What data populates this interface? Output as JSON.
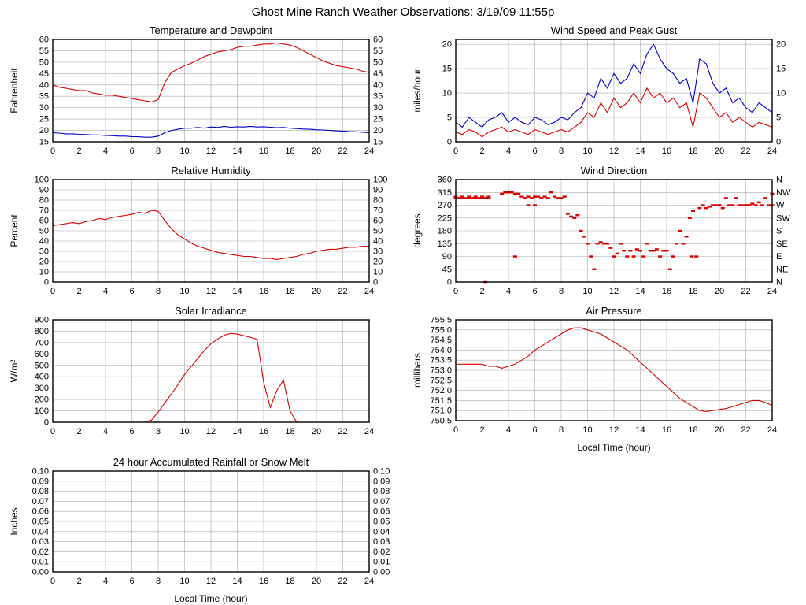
{
  "title": "Ghost Mine Ranch Weather Observations: 3/19/09 11:55p",
  "xlabel_shared": "Local Time (hour)",
  "colors": {
    "red": "#dd0000",
    "blue": "#0000cc",
    "grid": "#aaaaaa",
    "axis": "#000000"
  },
  "chart_data": [
    {
      "type": "line",
      "title": "Temperature and Dewpoint",
      "ylabel": "Fahrenheit",
      "xlabel": "",
      "ylim": [
        15,
        60
      ],
      "ytick_step": 5,
      "ytick_decimals": 0,
      "right_axis": "same",
      "xlim": [
        0,
        24
      ],
      "xtick_step": 2,
      "x_start": 0,
      "x_step": 0.5,
      "series": [
        {
          "name": "Temperature",
          "color": "#dd0000",
          "y": [
            40,
            39,
            38.5,
            38,
            37.5,
            37.5,
            36.5,
            36,
            35.5,
            35.5,
            35,
            34.5,
            34,
            33.5,
            33,
            32.5,
            33.5,
            41,
            45.5,
            47,
            48.5,
            49.5,
            51,
            52.5,
            53.5,
            54.5,
            55,
            55.5,
            56.5,
            57,
            57,
            57.5,
            58,
            58,
            58.5,
            58,
            57.5,
            56.5,
            55,
            53.5,
            52,
            50.5,
            49.5,
            48.5,
            48,
            47.5,
            47,
            46,
            45.5
          ]
        },
        {
          "name": "Dewpoint",
          "color": "#0000cc",
          "y": [
            19,
            18.8,
            18.5,
            18.5,
            18.3,
            18.2,
            18,
            18,
            17.8,
            17.7,
            17.5,
            17.5,
            17.3,
            17.2,
            17,
            17,
            17.5,
            19,
            20,
            20.5,
            21,
            21,
            21.3,
            21,
            21.5,
            21.3,
            21.8,
            21.4,
            21.6,
            21.5,
            21.8,
            21.5,
            21.6,
            21.4,
            21.2,
            21.3,
            21,
            20.8,
            20.6,
            20.5,
            20.3,
            20.2,
            20,
            19.8,
            19.7,
            19.5,
            19.4,
            19.2,
            19
          ]
        }
      ]
    },
    {
      "type": "line",
      "title": "Wind Speed and Peak Gust",
      "ylabel": "miles/hour",
      "xlabel": "",
      "ylim": [
        0,
        21
      ],
      "ytick_step": 5,
      "ytick_decimals": 0,
      "right_axis": "same",
      "xlim": [
        0,
        24
      ],
      "xtick_step": 2,
      "x_start": 0,
      "x_step": 0.5,
      "series": [
        {
          "name": "Peak Gust",
          "color": "#0000cc",
          "y": [
            4,
            3,
            5,
            4,
            3,
            4.5,
            5,
            6,
            4,
            5,
            4,
            3.5,
            5,
            4.5,
            3.5,
            4,
            5,
            4.5,
            6,
            7,
            10,
            9,
            13,
            11,
            14,
            12,
            13,
            16,
            14,
            18,
            20,
            17,
            15,
            14,
            12,
            13,
            8,
            17,
            16,
            12,
            10,
            11,
            8,
            9,
            7,
            6,
            8,
            7,
            6
          ]
        },
        {
          "name": "Wind Speed",
          "color": "#dd0000",
          "y": [
            2,
            1.5,
            2.5,
            2,
            1,
            2,
            2.5,
            3,
            2,
            2.5,
            2,
            1.5,
            2.5,
            2,
            1.5,
            2,
            2.5,
            2,
            3,
            4,
            6,
            5,
            8,
            6,
            9,
            7,
            8,
            10,
            8,
            11,
            9,
            10,
            8,
            9,
            7,
            8,
            3,
            10,
            9,
            7,
            5,
            6,
            4,
            5,
            4,
            3,
            4,
            3.5,
            3
          ]
        }
      ]
    },
    {
      "type": "line",
      "title": "Relative Humidity",
      "ylabel": "Percent",
      "xlabel": "",
      "ylim": [
        0,
        100
      ],
      "ytick_step": 10,
      "ytick_decimals": 0,
      "right_axis": "same",
      "xlim": [
        0,
        24
      ],
      "xtick_step": 2,
      "x_start": 0,
      "x_step": 0.5,
      "series": [
        {
          "name": "Relative Humidity",
          "color": "#dd0000",
          "y": [
            55,
            56,
            57,
            58,
            57,
            59,
            60,
            62,
            61,
            63,
            64,
            65,
            66,
            68,
            67,
            70,
            69,
            60,
            52,
            46,
            42,
            38,
            35,
            33,
            31,
            29,
            28,
            27,
            26,
            25,
            25,
            24,
            23,
            23,
            22,
            23,
            24,
            25,
            27,
            28,
            30,
            31,
            32,
            32,
            33,
            34,
            34,
            35,
            35
          ]
        }
      ]
    },
    {
      "type": "scatter",
      "title": "Wind Direction",
      "ylabel": "degrees",
      "xlabel": "",
      "ylim": [
        0,
        360
      ],
      "ytick_step": 45,
      "ytick_decimals": 0,
      "right_axis": "compass",
      "right_labels": [
        "N",
        "NE",
        "E",
        "SE",
        "S",
        "SW",
        "W",
        "NW",
        "N"
      ],
      "xlim": [
        0,
        24
      ],
      "xtick_step": 2,
      "series": [
        {
          "name": "Wind Direction",
          "color": "#dd0000",
          "points": [
            [
              0,
              295
            ],
            [
              0.25,
              295
            ],
            [
              0.5,
              295
            ],
            [
              0.75,
              295
            ],
            [
              1,
              295
            ],
            [
              1.25,
              295
            ],
            [
              1.5,
              295
            ],
            [
              1.75,
              295
            ],
            [
              2,
              295
            ],
            [
              2.25,
              295
            ],
            [
              2.5,
              295
            ],
            [
              0,
              300
            ],
            [
              0.5,
              300
            ],
            [
              1,
              300
            ],
            [
              1.5,
              300
            ],
            [
              2,
              300
            ],
            [
              2.5,
              300
            ],
            [
              2.25,
              0
            ],
            [
              3.5,
              310
            ],
            [
              3.75,
              315
            ],
            [
              4,
              315
            ],
            [
              4.25,
              315
            ],
            [
              4.5,
              310
            ],
            [
              4.75,
              310
            ],
            [
              4.5,
              90
            ],
            [
              5,
              300
            ],
            [
              5.25,
              295
            ],
            [
              5.5,
              300
            ],
            [
              5.75,
              295
            ],
            [
              6,
              300
            ],
            [
              6.25,
              300
            ],
            [
              6.5,
              295
            ],
            [
              6.75,
              300
            ],
            [
              5.5,
              270
            ],
            [
              6,
              270
            ],
            [
              7,
              295
            ],
            [
              7.25,
              315
            ],
            [
              7.5,
              300
            ],
            [
              7.75,
              295
            ],
            [
              8,
              295
            ],
            [
              8.25,
              300
            ],
            [
              8.5,
              240
            ],
            [
              8.75,
              230
            ],
            [
              9,
              225
            ],
            [
              9.25,
              235
            ],
            [
              9.5,
              180
            ],
            [
              9.75,
              160
            ],
            [
              10,
              135
            ],
            [
              10.25,
              90
            ],
            [
              10.5,
              45
            ],
            [
              10.75,
              135
            ],
            [
              11,
              140
            ],
            [
              11.25,
              135
            ],
            [
              11.5,
              135
            ],
            [
              11.75,
              120
            ],
            [
              12,
              90
            ],
            [
              12.25,
              100
            ],
            [
              12.5,
              135
            ],
            [
              12.75,
              110
            ],
            [
              13,
              90
            ],
            [
              13.25,
              110
            ],
            [
              13.5,
              90
            ],
            [
              13.75,
              115
            ],
            [
              14,
              110
            ],
            [
              14.25,
              90
            ],
            [
              14.5,
              135
            ],
            [
              14.75,
              110
            ],
            [
              15,
              110
            ],
            [
              15.25,
              115
            ],
            [
              15.5,
              90
            ],
            [
              15.75,
              110
            ],
            [
              16,
              110
            ],
            [
              16.25,
              45
            ],
            [
              16.5,
              90
            ],
            [
              16.75,
              135
            ],
            [
              17,
              180
            ],
            [
              17.25,
              135
            ],
            [
              17.5,
              160
            ],
            [
              17.75,
              225
            ],
            [
              17.9,
              90
            ],
            [
              18,
              250
            ],
            [
              18.25,
              90
            ],
            [
              18.5,
              260
            ],
            [
              18.75,
              270
            ],
            [
              19,
              260
            ],
            [
              19.25,
              265
            ],
            [
              19.5,
              270
            ],
            [
              19.75,
              270
            ],
            [
              20,
              270
            ],
            [
              20.25,
              260
            ],
            [
              20.5,
              295
            ],
            [
              20.75,
              270
            ],
            [
              21,
              270
            ],
            [
              21.25,
              295
            ],
            [
              21.5,
              270
            ],
            [
              21.75,
              270
            ],
            [
              22,
              270
            ],
            [
              22.25,
              270
            ],
            [
              22.5,
              275
            ],
            [
              22.75,
              270
            ],
            [
              23,
              280
            ],
            [
              23.25,
              270
            ],
            [
              23.5,
              295
            ],
            [
              23.75,
              270
            ],
            [
              24,
              270
            ],
            [
              24,
              310
            ]
          ]
        }
      ]
    },
    {
      "type": "line",
      "title": "Solar Irradiance",
      "ylabel": "W/m²",
      "xlabel": "",
      "ylim": [
        0,
        900
      ],
      "ytick_step": 100,
      "ytick_decimals": 0,
      "right_axis": "none",
      "xlim": [
        0,
        24
      ],
      "xtick_step": 2,
      "x_start": 0,
      "x_step": 0.5,
      "series": [
        {
          "name": "Solar Irradiance",
          "color": "#dd0000",
          "y": [
            0,
            0,
            0,
            0,
            0,
            0,
            0,
            0,
            0,
            0,
            0,
            0,
            0,
            0,
            0,
            20,
            90,
            170,
            250,
            330,
            420,
            490,
            560,
            630,
            690,
            730,
            765,
            780,
            775,
            760,
            745,
            730,
            350,
            130,
            280,
            370,
            100,
            0,
            0,
            0,
            0,
            0,
            0,
            0,
            0,
            0,
            0,
            0,
            0
          ]
        }
      ]
    },
    {
      "type": "line",
      "title": "Air Pressure",
      "ylabel": "millibars",
      "xlabel": "Local Time (hour)",
      "ylim": [
        750.5,
        755.5
      ],
      "ytick_step": 0.5,
      "ytick_decimals": 1,
      "right_axis": "none",
      "xlim": [
        0,
        24
      ],
      "xtick_step": 2,
      "x_start": 0,
      "x_step": 0.5,
      "series": [
        {
          "name": "Air Pressure",
          "color": "#dd0000",
          "y": [
            753.3,
            753.3,
            753.3,
            753.3,
            753.3,
            753.2,
            753.2,
            753.1,
            753.2,
            753.3,
            753.5,
            753.7,
            754.0,
            754.2,
            754.4,
            754.6,
            754.8,
            755.0,
            755.1,
            755.1,
            755.0,
            754.9,
            754.8,
            754.6,
            754.4,
            754.2,
            754.0,
            753.7,
            753.4,
            753.1,
            752.8,
            752.5,
            752.2,
            751.9,
            751.6,
            751.4,
            751.2,
            751.0,
            750.95,
            751.0,
            751.05,
            751.1,
            751.2,
            751.3,
            751.4,
            751.5,
            751.5,
            751.4,
            751.25
          ]
        }
      ]
    },
    {
      "type": "line",
      "title": "24 hour Accumulated Rainfall or Snow Melt",
      "ylabel": "Inches",
      "xlabel": "Local Time (hour)",
      "ylim": [
        0,
        0.1
      ],
      "ytick_step": 0.01,
      "ytick_decimals": 2,
      "right_axis": "same",
      "xlim": [
        0,
        24
      ],
      "xtick_step": 2,
      "series": [
        {
          "name": "Rainfall",
          "color": "#dd0000",
          "x": [
            0,
            24
          ],
          "y": [
            0,
            0
          ]
        }
      ]
    }
  ]
}
